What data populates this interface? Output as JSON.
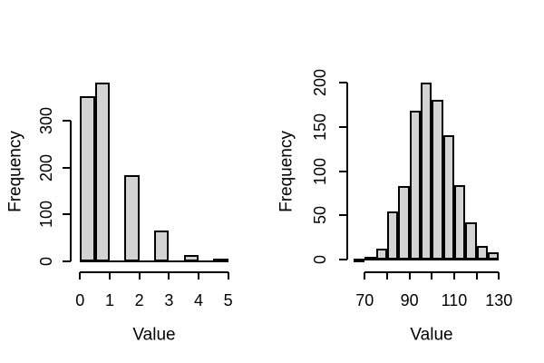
{
  "style": {
    "background": "#ffffff",
    "bar_fill": "#d3d3d3",
    "bar_border": "#000000",
    "text_color": "#000000"
  },
  "chart_data": [
    {
      "type": "bar",
      "subtype": "histogram",
      "title": "",
      "xlabel": "Value",
      "ylabel": "Frequency",
      "bin_start": 0,
      "bin_width": 0.5,
      "counts": [
        352,
        382,
        0,
        184,
        0,
        65,
        0,
        14,
        0,
        6
      ],
      "bin_edges": [
        0,
        0.5,
        1,
        1.5,
        2,
        2.5,
        3,
        3.5,
        4,
        4.5,
        5
      ],
      "x_ticks": [
        0,
        1,
        2,
        3,
        4,
        5
      ],
      "x_tick_labels": [
        "0",
        "1",
        "2",
        "3",
        "4",
        "5"
      ],
      "y_ticks": [
        0,
        100,
        200,
        300
      ],
      "y_tick_labels": [
        "0",
        "100",
        "200",
        "300"
      ],
      "xlim": [
        0,
        5
      ],
      "ylim": [
        0,
        382
      ],
      "grid": false,
      "legend": false
    },
    {
      "type": "bar",
      "subtype": "histogram",
      "title": "",
      "xlabel": "Value",
      "ylabel": "Frequency",
      "bin_start": 65,
      "bin_width": 5,
      "counts": [
        1,
        3,
        12,
        54,
        83,
        168,
        200,
        181,
        141,
        84,
        42,
        15,
        8
      ],
      "bin_edges": [
        65,
        70,
        75,
        80,
        85,
        90,
        95,
        100,
        105,
        110,
        115,
        120,
        125,
        130
      ],
      "x_ticks": [
        70,
        80,
        90,
        100,
        110,
        120,
        130
      ],
      "x_tick_labels": [
        "70",
        "",
        "90",
        "",
        "110",
        "",
        "130"
      ],
      "y_ticks": [
        0,
        50,
        100,
        150,
        200
      ],
      "y_tick_labels": [
        "0",
        "50",
        "100",
        "150",
        "200"
      ],
      "xlim": [
        65,
        130
      ],
      "ylim": [
        0,
        200
      ],
      "grid": false,
      "legend": false
    }
  ]
}
